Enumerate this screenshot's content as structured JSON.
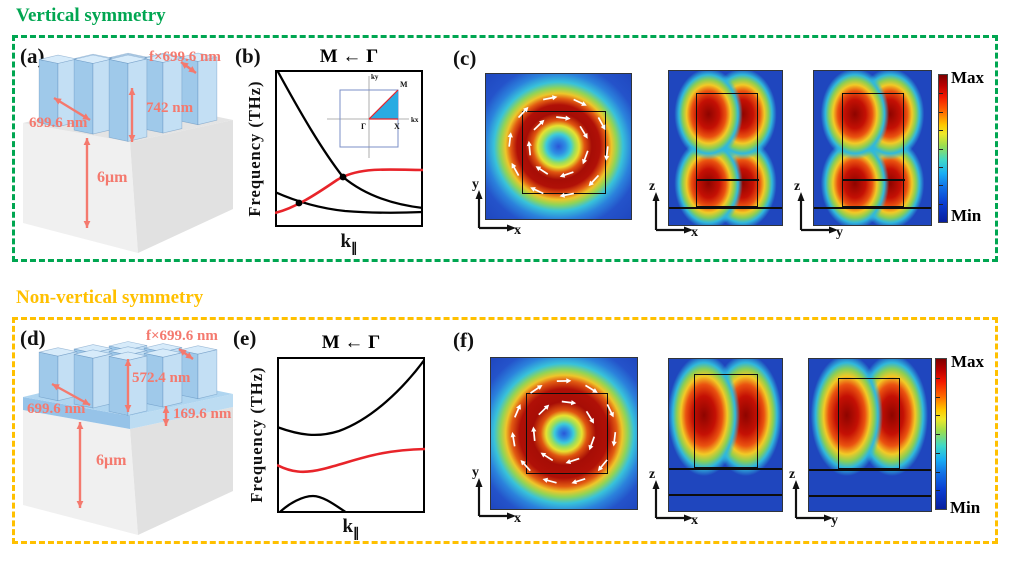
{
  "figure": {
    "background": "#FFFFFF",
    "dimension_label_color": "#F4796E",
    "band_red": "#E8242A",
    "band_black": "#000000"
  },
  "sections": [
    {
      "title": "Vertical symmetry",
      "accent": "#00A651",
      "panels": {
        "scene": {
          "label": "(a)",
          "dims": {
            "top_width": "f×699.6 nm",
            "pillar_height": "742 nm",
            "pitch": "699.6 nm",
            "substrate": "6μm"
          }
        },
        "band": {
          "label": "(b)",
          "title": "M ← Γ",
          "ylabel": "Frequency (THz)",
          "xlabel": "k",
          "xlabel_sub": "∥",
          "inset": {
            "ky": "ky",
            "kx": "kx",
            "m": "M",
            "gamma": "Γ",
            "x": "X"
          }
        },
        "modes": {
          "label": "(c)",
          "plots": [
            {
              "v": "y",
              "h": "x"
            },
            {
              "v": "z",
              "h": "x"
            },
            {
              "v": "z",
              "h": "y"
            }
          ],
          "colorbar": {
            "max": "Max",
            "min": "Min"
          }
        }
      }
    },
    {
      "title": "Non-vertical symmetry",
      "accent": "#FFC000",
      "panels": {
        "scene": {
          "label": "(d)",
          "dims": {
            "top_width": "f×699.6 nm",
            "pillar_height": "572.4 nm",
            "pitch": "699.6 nm",
            "slab": "169.6 nm",
            "substrate": "6μm"
          }
        },
        "band": {
          "label": "(e)",
          "title": "M ← Γ",
          "ylabel": "Frequency (THz)",
          "xlabel": "k",
          "xlabel_sub": "∥"
        },
        "modes": {
          "label": "(f)",
          "plots": [
            {
              "v": "y",
              "h": "x"
            },
            {
              "v": "z",
              "h": "x"
            },
            {
              "v": "z",
              "h": "y"
            }
          ],
          "colorbar": {
            "max": "Max",
            "min": "Min"
          }
        }
      }
    }
  ],
  "chart_data": [
    {
      "type": "line",
      "panel": "(b)",
      "title": "M ← Γ",
      "xlabel": "k∥",
      "ylabel": "Frequency (THz)",
      "axis_ticks": "none (schematic band diagram)",
      "series": [
        {
          "name": "upper black band (steeply descending from Γ)",
          "color": "#000000"
        },
        {
          "name": "red band (rises then flattens toward M)",
          "color": "#E8242A"
        },
        {
          "name": "lower black band (gently descending, flat)",
          "color": "#000000"
        }
      ],
      "annotations": [
        "two black dots mark band crossing points"
      ],
      "inset": "square Brillouin zone with axes kx, ky; blue triangle Γ–X–M with red Γ→M and Γ→X paths"
    },
    {
      "type": "line",
      "panel": "(e)",
      "title": "M ← Γ",
      "xlabel": "k∥",
      "ylabel": "Frequency (THz)",
      "axis_ticks": "none (schematic band diagram)",
      "series": [
        {
          "name": "upper black band (dips then rises steeply to top-right)",
          "color": "#000000"
        },
        {
          "name": "red band (dips slightly then flattens)",
          "color": "#E8242A"
        },
        {
          "name": "lower black band (small hump near bottom-left)",
          "color": "#000000"
        }
      ],
      "annotations": [
        "avoided crossings — no degeneracy dots"
      ]
    }
  ]
}
